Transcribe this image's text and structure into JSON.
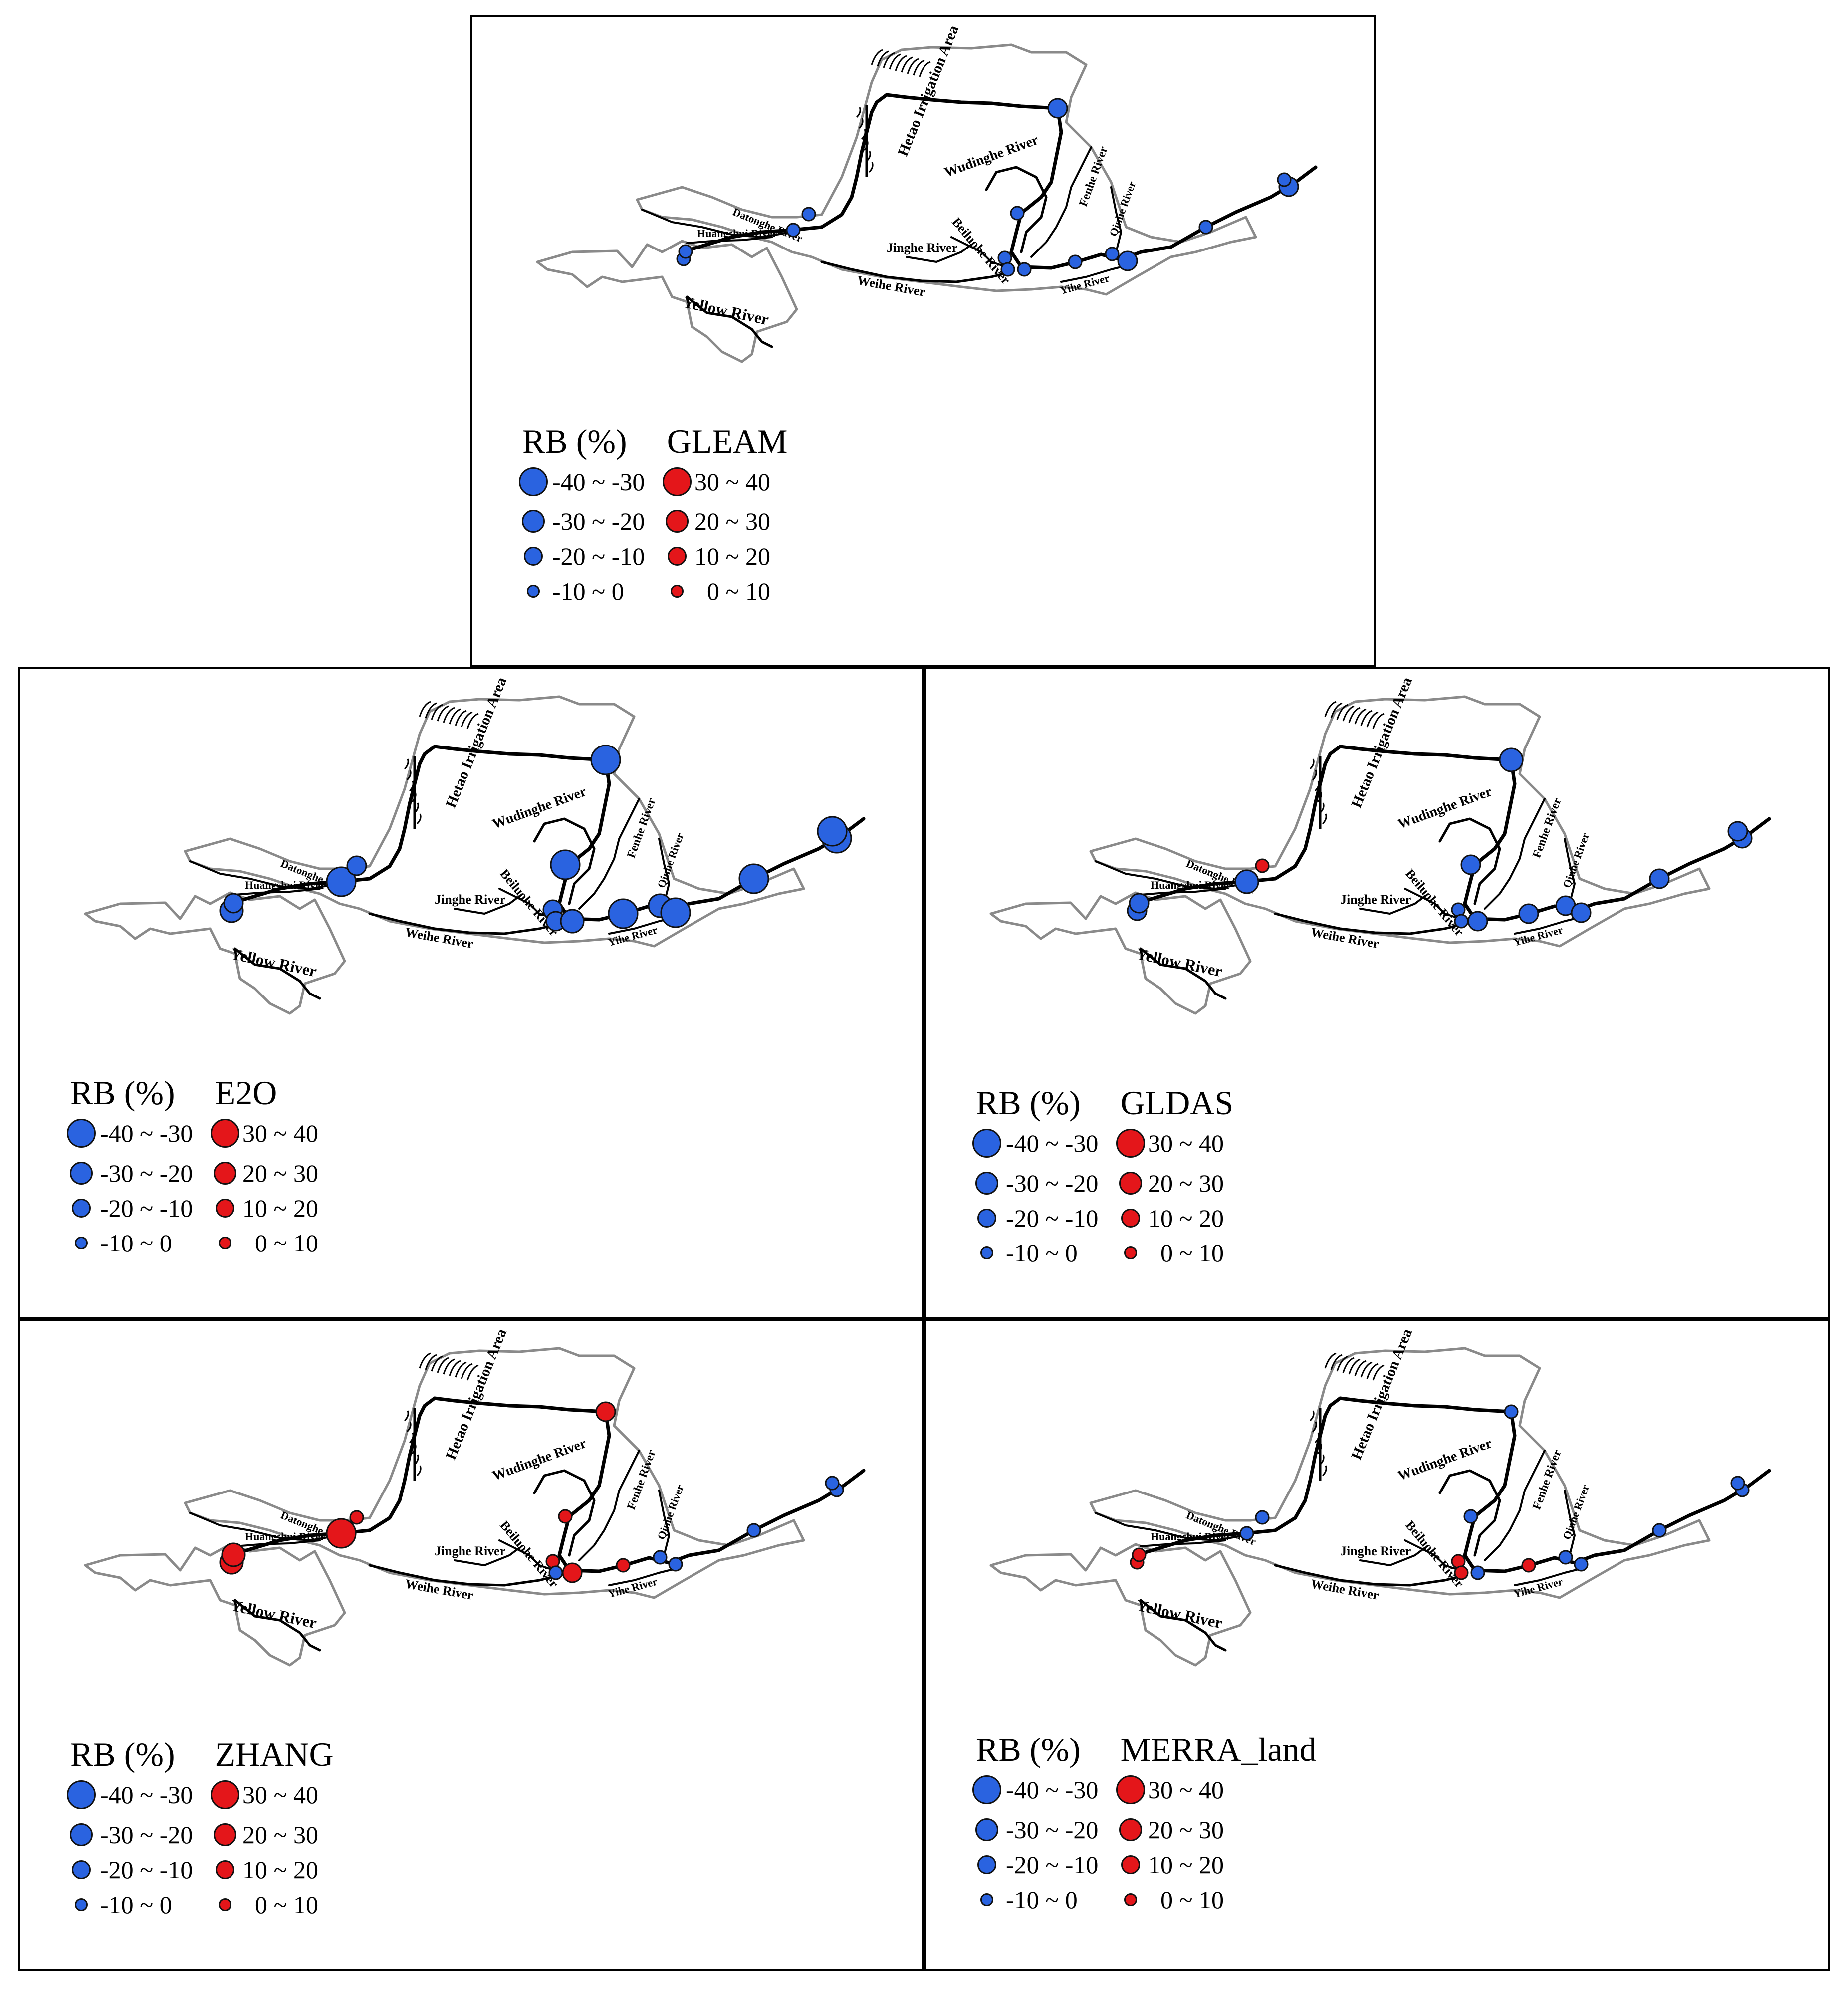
{
  "legend": {
    "heading": "RB (%)",
    "classes_blue": [
      "-40 ~ -30",
      "-30 ~ -20",
      "-20 ~ -10",
      "-10 ~  0"
    ],
    "classes_red": [
      "30 ~ 40",
      "20 ~ 30",
      "10 ~ 20",
      "0 ~ 10"
    ],
    "colors": {
      "negative": "#2a63e0",
      "positive": "#e4161a",
      "basin_outline": "#8a8a8a",
      "river": "#000000"
    }
  },
  "map_labels": {
    "hetao": "Hetao Irrigation Area",
    "datonghe": "Datonghe River",
    "huangshui": "Huangshui River",
    "yellow": "Yellow River",
    "wudinghe": "Wudinghe River",
    "beiluohe": "Beiluohe River",
    "jinghe": "Jinghe River",
    "weihe": "Weihe River",
    "fenhe": "Fenhe River",
    "qinhe": "Qinhe River",
    "yihe": "Yihe River"
  },
  "panels": [
    {
      "model": "GLEAM",
      "stations": [
        {
          "id": "s1",
          "sign": "neg",
          "cls": 1
        },
        {
          "id": "s2",
          "sign": "neg",
          "cls": 1
        },
        {
          "id": "s3",
          "sign": "neg",
          "cls": 1
        },
        {
          "id": "s4",
          "sign": "neg",
          "cls": 1
        },
        {
          "id": "s5",
          "sign": "neg",
          "cls": 2
        },
        {
          "id": "s6",
          "sign": "neg",
          "cls": 1
        },
        {
          "id": "s7",
          "sign": "neg",
          "cls": 1
        },
        {
          "id": "s8",
          "sign": "neg",
          "cls": 1
        },
        {
          "id": "s9",
          "sign": "neg",
          "cls": 1
        },
        {
          "id": "s10",
          "sign": "neg",
          "cls": 1
        },
        {
          "id": "s11",
          "sign": "neg",
          "cls": 1
        },
        {
          "id": "s12",
          "sign": "neg",
          "cls": 2
        },
        {
          "id": "s13",
          "sign": "neg",
          "cls": 1
        },
        {
          "id": "s14",
          "sign": "neg",
          "cls": 2
        },
        {
          "id": "s15",
          "sign": "neg",
          "cls": 1
        }
      ]
    },
    {
      "model": "E2O",
      "stations": [
        {
          "id": "s1",
          "sign": "neg",
          "cls": 3
        },
        {
          "id": "s2",
          "sign": "neg",
          "cls": 2
        },
        {
          "id": "s3",
          "sign": "neg",
          "cls": 4
        },
        {
          "id": "s4",
          "sign": "neg",
          "cls": 2
        },
        {
          "id": "s5",
          "sign": "neg",
          "cls": 4
        },
        {
          "id": "s6",
          "sign": "neg",
          "cls": 4
        },
        {
          "id": "s7",
          "sign": "neg",
          "cls": 2
        },
        {
          "id": "s8",
          "sign": "neg",
          "cls": 2
        },
        {
          "id": "s9",
          "sign": "neg",
          "cls": 3
        },
        {
          "id": "s10",
          "sign": "neg",
          "cls": 4
        },
        {
          "id": "s11",
          "sign": "neg",
          "cls": 3
        },
        {
          "id": "s12",
          "sign": "neg",
          "cls": 4
        },
        {
          "id": "s13",
          "sign": "neg",
          "cls": 4
        },
        {
          "id": "s14",
          "sign": "neg",
          "cls": 4
        },
        {
          "id": "s15",
          "sign": "neg",
          "cls": 4
        }
      ]
    },
    {
      "model": "GLDAS",
      "stations": [
        {
          "id": "s1",
          "sign": "neg",
          "cls": 2
        },
        {
          "id": "s2",
          "sign": "neg",
          "cls": 2
        },
        {
          "id": "s3",
          "sign": "neg",
          "cls": 3
        },
        {
          "id": "s4",
          "sign": "pos",
          "cls": 1
        },
        {
          "id": "s5",
          "sign": "neg",
          "cls": 3
        },
        {
          "id": "s6",
          "sign": "neg",
          "cls": 2
        },
        {
          "id": "s7",
          "sign": "neg",
          "cls": 1
        },
        {
          "id": "s8",
          "sign": "neg",
          "cls": 1
        },
        {
          "id": "s9",
          "sign": "neg",
          "cls": 2
        },
        {
          "id": "s10",
          "sign": "neg",
          "cls": 2
        },
        {
          "id": "s11",
          "sign": "neg",
          "cls": 2
        },
        {
          "id": "s12",
          "sign": "neg",
          "cls": 2
        },
        {
          "id": "s13",
          "sign": "neg",
          "cls": 2
        },
        {
          "id": "s14",
          "sign": "neg",
          "cls": 2
        },
        {
          "id": "s15",
          "sign": "neg",
          "cls": 2
        }
      ]
    },
    {
      "model": "ZHANG",
      "stations": [
        {
          "id": "s1",
          "sign": "pos",
          "cls": 3
        },
        {
          "id": "s2",
          "sign": "pos",
          "cls": 3
        },
        {
          "id": "s3",
          "sign": "pos",
          "cls": 4
        },
        {
          "id": "s4",
          "sign": "pos",
          "cls": 1
        },
        {
          "id": "s5",
          "sign": "pos",
          "cls": 2
        },
        {
          "id": "s6",
          "sign": "pos",
          "cls": 1
        },
        {
          "id": "s7",
          "sign": "pos",
          "cls": 1
        },
        {
          "id": "s8",
          "sign": "neg",
          "cls": 1
        },
        {
          "id": "s9",
          "sign": "pos",
          "cls": 2
        },
        {
          "id": "s10",
          "sign": "pos",
          "cls": 1
        },
        {
          "id": "s11",
          "sign": "neg",
          "cls": 1
        },
        {
          "id": "s12",
          "sign": "neg",
          "cls": 1
        },
        {
          "id": "s13",
          "sign": "neg",
          "cls": 1
        },
        {
          "id": "s14",
          "sign": "neg",
          "cls": 1
        },
        {
          "id": "s15",
          "sign": "neg",
          "cls": 1
        }
      ]
    },
    {
      "model": "MERRA_land",
      "stations": [
        {
          "id": "s1",
          "sign": "pos",
          "cls": 1
        },
        {
          "id": "s2",
          "sign": "pos",
          "cls": 1
        },
        {
          "id": "s3",
          "sign": "neg",
          "cls": 1
        },
        {
          "id": "s4",
          "sign": "neg",
          "cls": 1
        },
        {
          "id": "s5",
          "sign": "neg",
          "cls": 1
        },
        {
          "id": "s6",
          "sign": "neg",
          "cls": 1
        },
        {
          "id": "s7",
          "sign": "pos",
          "cls": 1
        },
        {
          "id": "s8",
          "sign": "pos",
          "cls": 1
        },
        {
          "id": "s9",
          "sign": "neg",
          "cls": 1
        },
        {
          "id": "s10",
          "sign": "pos",
          "cls": 1
        },
        {
          "id": "s11",
          "sign": "neg",
          "cls": 1
        },
        {
          "id": "s12",
          "sign": "neg",
          "cls": 1
        },
        {
          "id": "s13",
          "sign": "neg",
          "cls": 1
        },
        {
          "id": "s14",
          "sign": "neg",
          "cls": 1
        },
        {
          "id": "s15",
          "sign": "neg",
          "cls": 1
        }
      ]
    }
  ]
}
